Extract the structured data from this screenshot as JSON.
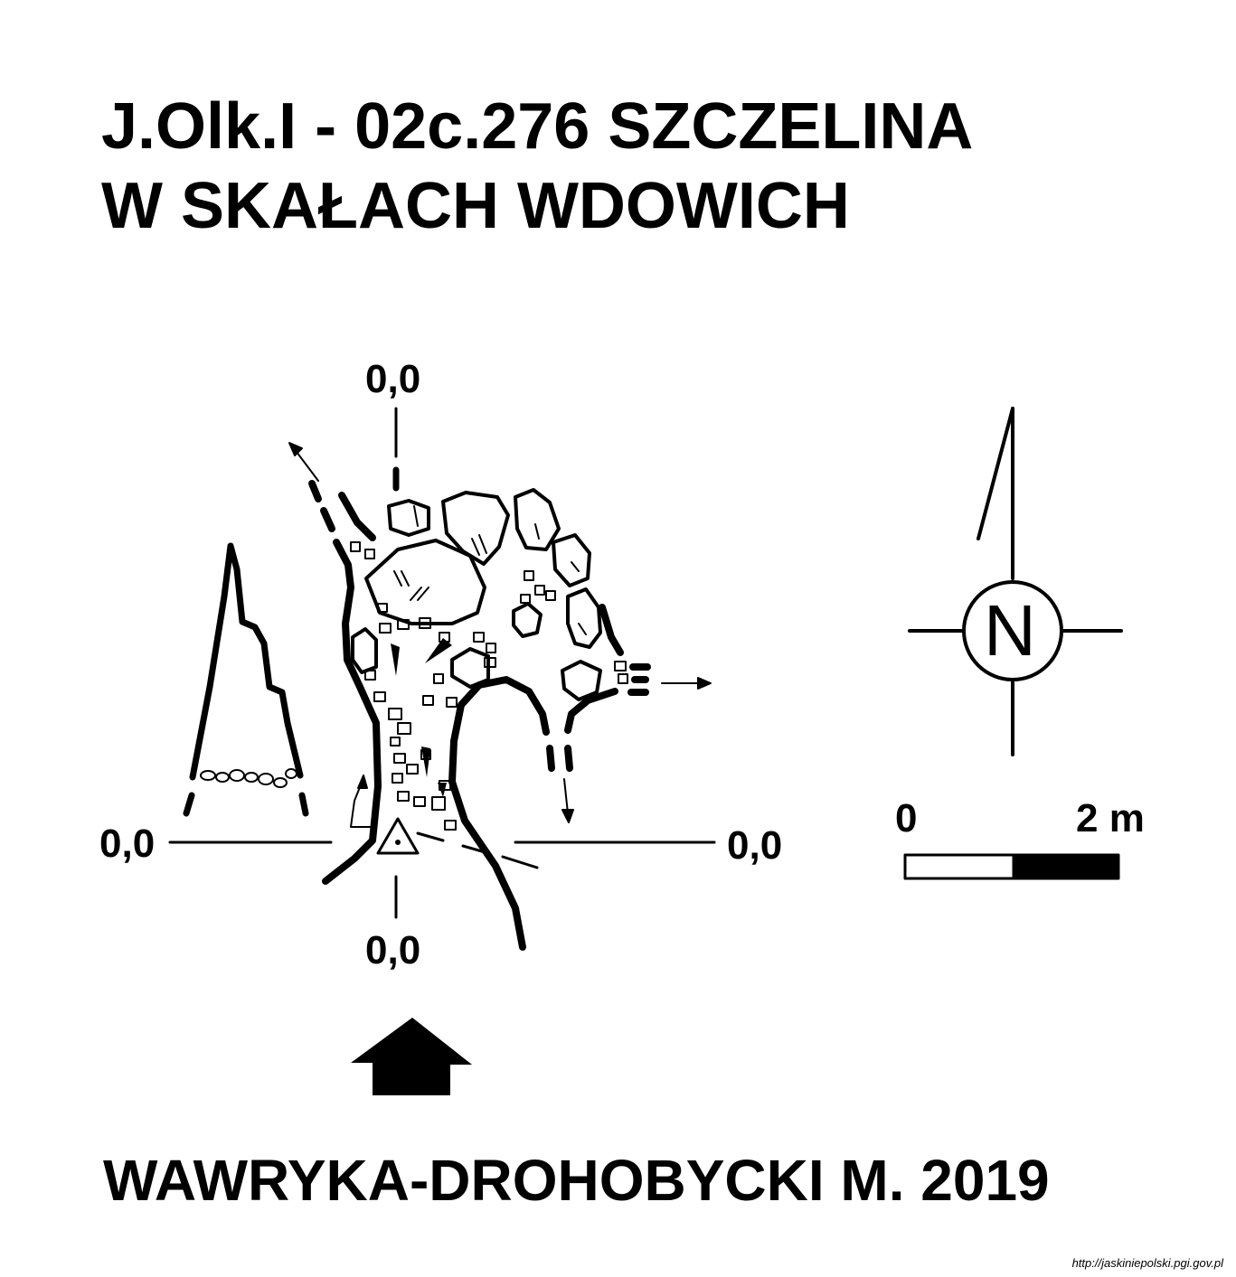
{
  "title": {
    "line1": "J.Olk.I - 02c.276  SZCZELINA",
    "line2": "W SKAŁACH WDOWICH"
  },
  "section_labels": {
    "top": "0,0",
    "bottom": "0,0",
    "left": "0,0",
    "right": "0,0"
  },
  "compass": {
    "letter": "N"
  },
  "scale_bar": {
    "start_label": "0",
    "end_label": "2 m"
  },
  "author": "WAWRYKA-DROHOBYCKI M. 2019",
  "source_url": "http://jaskiniepolski.pgi.gov.pl"
}
